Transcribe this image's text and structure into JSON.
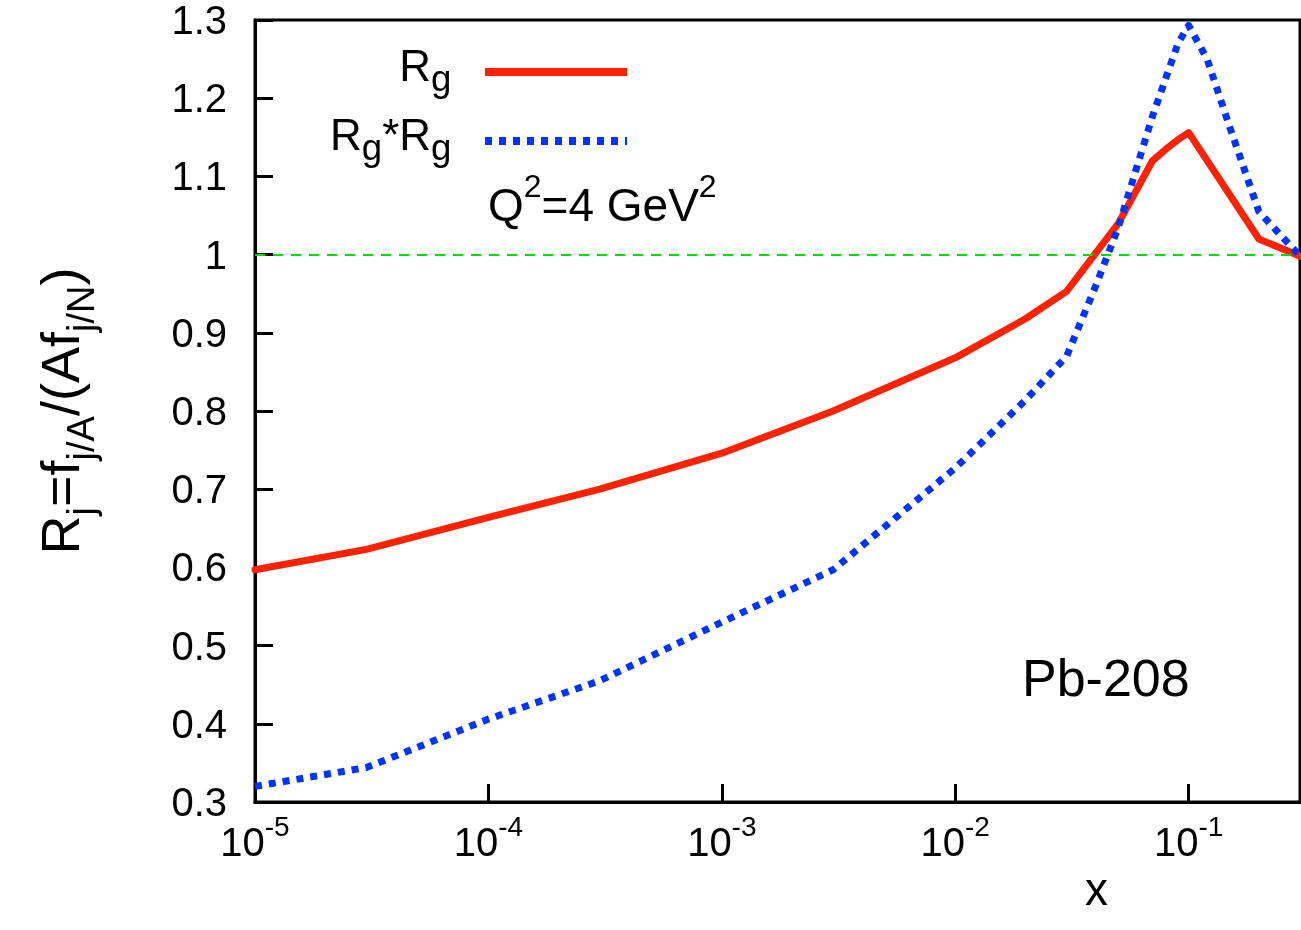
{
  "chart_data": {
    "type": "line",
    "xlabel": "x",
    "ylabel": "R$_{j}$=f$_{j/A}$/(Af$_{j/N}$)",
    "log": "x",
    "xlim": [
      1e-05,
      0.3
    ],
    "xticks": [
      {
        "value": 1e-05,
        "label": "10$^{-5}$"
      },
      {
        "value": 0.0001,
        "label": "10$^{-4}$"
      },
      {
        "value": 0.001,
        "label": "10$^{-3}$"
      },
      {
        "value": 0.01,
        "label": "10$^{-2}$"
      },
      {
        "value": 0.1,
        "label": "10$^{-1}$"
      }
    ],
    "ylim": [
      0.3,
      1.3
    ],
    "yticks": [
      0.3,
      0.4,
      0.5,
      0.6,
      0.7,
      0.8,
      0.9,
      1,
      1.1,
      1.2,
      1.3
    ],
    "series": [
      {
        "name": "R$_{g}$",
        "color": "#ff2200",
        "line_style": "solid",
        "x": [
          1e-05,
          3e-05,
          0.0001,
          0.0003,
          0.001,
          0.003,
          0.01,
          0.02,
          0.03,
          0.05,
          0.07,
          0.08,
          0.09,
          0.1,
          0.2,
          0.3
        ],
        "values": [
          0.597,
          0.623,
          0.664,
          0.7,
          0.746,
          0.8,
          0.868,
          0.918,
          0.953,
          1.04,
          1.12,
          1.135,
          1.147,
          1.156,
          1.02,
          0.998
        ]
      },
      {
        "name": "R$_{g}$*R$_{g}$",
        "color": "#0033ff",
        "line_style": "dotted",
        "x": [
          1e-05,
          3e-05,
          0.0001,
          0.0003,
          0.001,
          0.003,
          0.01,
          0.02,
          0.03,
          0.04,
          0.05,
          0.07,
          0.09,
          0.1,
          0.12,
          0.15,
          0.2,
          0.3
        ],
        "values": [
          0.32,
          0.344,
          0.406,
          0.455,
          0.53,
          0.597,
          0.727,
          0.814,
          0.87,
          0.96,
          1.035,
          1.177,
          1.27,
          1.293,
          1.25,
          1.163,
          1.055,
          0.998
        ]
      }
    ],
    "ref_lines": [
      {
        "axis": "y",
        "value": 1,
        "color": "#00dd00",
        "line_style": "dashed"
      }
    ],
    "annotations": [
      "Q$^{2}$=4 GeV$^{2}$",
      "Pb-208"
    ],
    "legend": "top left",
    "marker": "none",
    "grid": false
  }
}
